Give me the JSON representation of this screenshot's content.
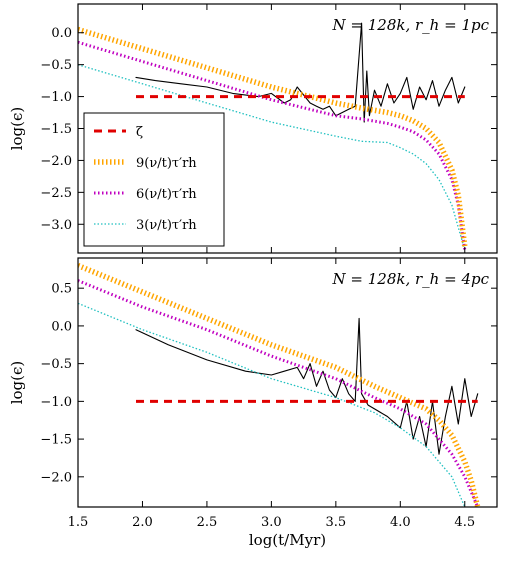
{
  "chart_data": [
    {
      "type": "line",
      "annotation": "N = 128k,  r_h = 1pc",
      "xlabel": "",
      "ylabel": "log(ϵ)",
      "xlim": [
        1.5,
        4.75
      ],
      "ylim": [
        -3.45,
        0.45
      ],
      "xticks": [
        "1.5",
        "2.0",
        "2.5",
        "3.0",
        "3.5",
        "4.0",
        "4.5"
      ],
      "yticks": [
        "0.0",
        "-0.5",
        "-1.0",
        "-1.5",
        "-2.0",
        "-2.5",
        "-3.0"
      ],
      "legend": {
        "location": "lower-left",
        "entries": [
          "ζ",
          "9(ν/t)τ′rh",
          "6(ν/t)τ′rh",
          "3(ν/t)τ′rh"
        ]
      },
      "series": [
        {
          "name": "ζ",
          "color": "#e00000",
          "style": "dashed",
          "x": [
            1.95,
            4.5
          ],
          "y": [
            -1.0,
            -1.0
          ]
        },
        {
          "name": "9(ν/t)τ′rh",
          "color": "#ffa500",
          "style": "thick-dotted",
          "x": [
            1.5,
            2.0,
            2.5,
            3.0,
            3.5,
            3.7,
            3.9,
            4.0,
            4.1,
            4.2,
            4.3,
            4.4,
            4.45,
            4.5
          ],
          "y": [
            0.05,
            -0.25,
            -0.55,
            -0.85,
            -1.1,
            -1.18,
            -1.25,
            -1.3,
            -1.38,
            -1.5,
            -1.72,
            -2.15,
            -2.55,
            -3.35
          ]
        },
        {
          "name": "6(ν/t)τ′rh",
          "color": "#c000c0",
          "style": "dotted",
          "x": [
            1.5,
            2.0,
            2.5,
            3.0,
            3.5,
            3.7,
            3.9,
            4.0,
            4.1,
            4.2,
            4.3,
            4.4,
            4.45,
            4.5
          ],
          "y": [
            -0.15,
            -0.45,
            -0.75,
            -1.05,
            -1.3,
            -1.35,
            -1.42,
            -1.48,
            -1.55,
            -1.68,
            -1.9,
            -2.3,
            -2.7,
            -3.4
          ]
        },
        {
          "name": "3(ν/t)τ′rh",
          "color": "#20c0c0",
          "style": "fine-dotted",
          "x": [
            1.5,
            2.0,
            2.5,
            3.0,
            3.5,
            3.7,
            3.9,
            4.0,
            4.1,
            4.2,
            4.3,
            4.4,
            4.45,
            4.5
          ],
          "y": [
            -0.5,
            -0.8,
            -1.1,
            -1.4,
            -1.62,
            -1.7,
            -1.72,
            -1.8,
            -1.9,
            -2.05,
            -2.3,
            -2.7,
            -3.05,
            -3.4
          ]
        },
        {
          "name": "",
          "color": "#000000",
          "style": "solid",
          "x": [
            1.95,
            2.1,
            2.3,
            2.5,
            2.7,
            2.9,
            3.0,
            3.1,
            3.15,
            3.2,
            3.3,
            3.35,
            3.4,
            3.45,
            3.5,
            3.55,
            3.6,
            3.65,
            3.7,
            3.72,
            3.74,
            3.76,
            3.8,
            3.85,
            3.9,
            3.95,
            4.0,
            4.05,
            4.1,
            4.15,
            4.2,
            4.25,
            4.3,
            4.35,
            4.4,
            4.45,
            4.5
          ],
          "y": [
            -0.7,
            -0.75,
            -0.8,
            -0.85,
            -0.95,
            -1.0,
            -0.95,
            -1.1,
            -1.05,
            -0.85,
            -1.1,
            -1.15,
            -1.2,
            -1.15,
            -1.3,
            -1.25,
            -1.2,
            -1.15,
            0.15,
            -1.4,
            -0.6,
            -1.3,
            -0.9,
            -1.15,
            -0.8,
            -1.1,
            -0.95,
            -0.7,
            -1.2,
            -0.85,
            -1.05,
            -0.75,
            -1.15,
            -0.9,
            -0.7,
            -1.1,
            -0.85
          ]
        }
      ]
    },
    {
      "type": "line",
      "annotation": "N = 128k,  r_h = 4pc",
      "xlabel": "log(t/Myr)",
      "ylabel": "log(ϵ)",
      "xlim": [
        1.5,
        4.75
      ],
      "ylim": [
        -2.4,
        0.9
      ],
      "xticks": [
        "1.5",
        "2.0",
        "2.5",
        "3.0",
        "3.5",
        "4.0",
        "4.5"
      ],
      "yticks": [
        "0.5",
        "0.0",
        "-0.5",
        "-1.0",
        "-1.5",
        "-2.0"
      ],
      "series": [
        {
          "name": "ζ",
          "color": "#e00000",
          "style": "dashed",
          "x": [
            1.95,
            4.6
          ],
          "y": [
            -1.0,
            -1.0
          ]
        },
        {
          "name": "9(ν/t)τ′rh",
          "color": "#ffa500",
          "style": "thick-dotted",
          "x": [
            1.5,
            2.0,
            2.5,
            3.0,
            3.5,
            3.8,
            4.0,
            4.2,
            4.3,
            4.4,
            4.5,
            4.55,
            4.6
          ],
          "y": [
            0.8,
            0.45,
            0.1,
            -0.25,
            -0.55,
            -0.8,
            -0.95,
            -1.1,
            -1.25,
            -1.45,
            -1.8,
            -2.05,
            -2.4
          ]
        },
        {
          "name": "6(ν/t)τ′rh",
          "color": "#c000c0",
          "style": "dotted",
          "x": [
            1.5,
            2.0,
            2.5,
            3.0,
            3.5,
            3.8,
            4.0,
            4.2,
            4.3,
            4.4,
            4.5,
            4.55,
            4.6
          ],
          "y": [
            0.6,
            0.25,
            -0.05,
            -0.4,
            -0.7,
            -0.95,
            -1.1,
            -1.3,
            -1.5,
            -1.7,
            -2.0,
            -2.2,
            -2.4
          ]
        },
        {
          "name": "3(ν/t)τ′rh",
          "color": "#20c0c0",
          "style": "fine-dotted",
          "x": [
            1.5,
            2.0,
            2.5,
            3.0,
            3.5,
            3.8,
            4.0,
            4.2,
            4.3,
            4.4,
            4.5
          ],
          "y": [
            0.3,
            -0.05,
            -0.35,
            -0.7,
            -0.95,
            -1.15,
            -1.35,
            -1.6,
            -1.8,
            -2.0,
            -2.4
          ]
        },
        {
          "name": "",
          "color": "#000000",
          "style": "solid",
          "x": [
            1.95,
            2.2,
            2.5,
            2.8,
            3.0,
            3.1,
            3.2,
            3.25,
            3.3,
            3.35,
            3.4,
            3.45,
            3.5,
            3.55,
            3.6,
            3.65,
            3.68,
            3.7,
            3.75,
            3.8,
            3.9,
            4.0,
            4.05,
            4.1,
            4.15,
            4.2,
            4.25,
            4.3,
            4.35,
            4.4,
            4.45,
            4.5,
            4.55,
            4.6
          ],
          "y": [
            -0.05,
            -0.25,
            -0.45,
            -0.6,
            -0.65,
            -0.6,
            -0.55,
            -0.7,
            -0.5,
            -0.8,
            -0.6,
            -0.85,
            -0.95,
            -0.7,
            -0.9,
            -1.0,
            0.1,
            -0.9,
            -1.05,
            -1.1,
            -1.2,
            -1.35,
            -1.0,
            -1.5,
            -1.2,
            -1.6,
            -1.0,
            -1.7,
            -1.2,
            -0.8,
            -1.3,
            -0.7,
            -1.2,
            -0.9
          ]
        }
      ]
    }
  ]
}
